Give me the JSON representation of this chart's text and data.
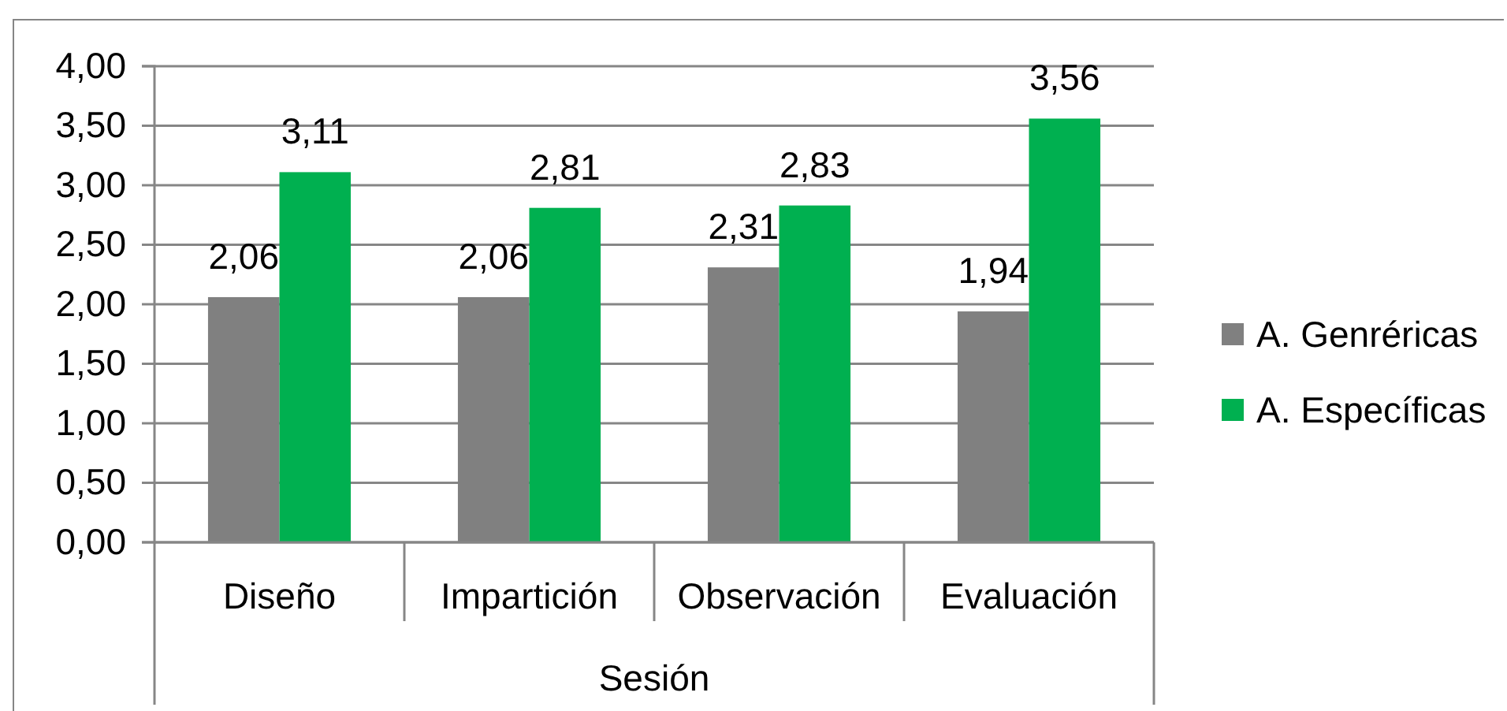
{
  "chart_data": {
    "type": "bar",
    "xlabel": "Sesión",
    "categories": [
      "Diseño",
      "Impartición",
      "Observación",
      "Evaluación"
    ],
    "series": [
      {
        "name": "A. Genréricas",
        "color": "#808080",
        "values": [
          2.06,
          2.06,
          2.31,
          1.94
        ],
        "value_labels": [
          "2,06",
          "2,06",
          "2,31",
          "1,94"
        ]
      },
      {
        "name": "A. Específicas",
        "color": "#00b050",
        "values": [
          3.11,
          2.81,
          2.83,
          3.56
        ],
        "value_labels": [
          "3,11",
          "2,81",
          "2,83",
          "3,56"
        ]
      }
    ],
    "ylim": [
      0,
      4
    ],
    "yticks": [
      {
        "value": 0,
        "label": "0,00"
      },
      {
        "value": 0.5,
        "label": "0,50"
      },
      {
        "value": 1,
        "label": "1,00"
      },
      {
        "value": 1.5,
        "label": "1,50"
      },
      {
        "value": 2,
        "label": "2,00"
      },
      {
        "value": 2.5,
        "label": "2,50"
      },
      {
        "value": 3,
        "label": "3,00"
      },
      {
        "value": 3.5,
        "label": "3,50"
      },
      {
        "value": 4,
        "label": "4,00"
      }
    ],
    "grid": "y",
    "legend": "right"
  }
}
